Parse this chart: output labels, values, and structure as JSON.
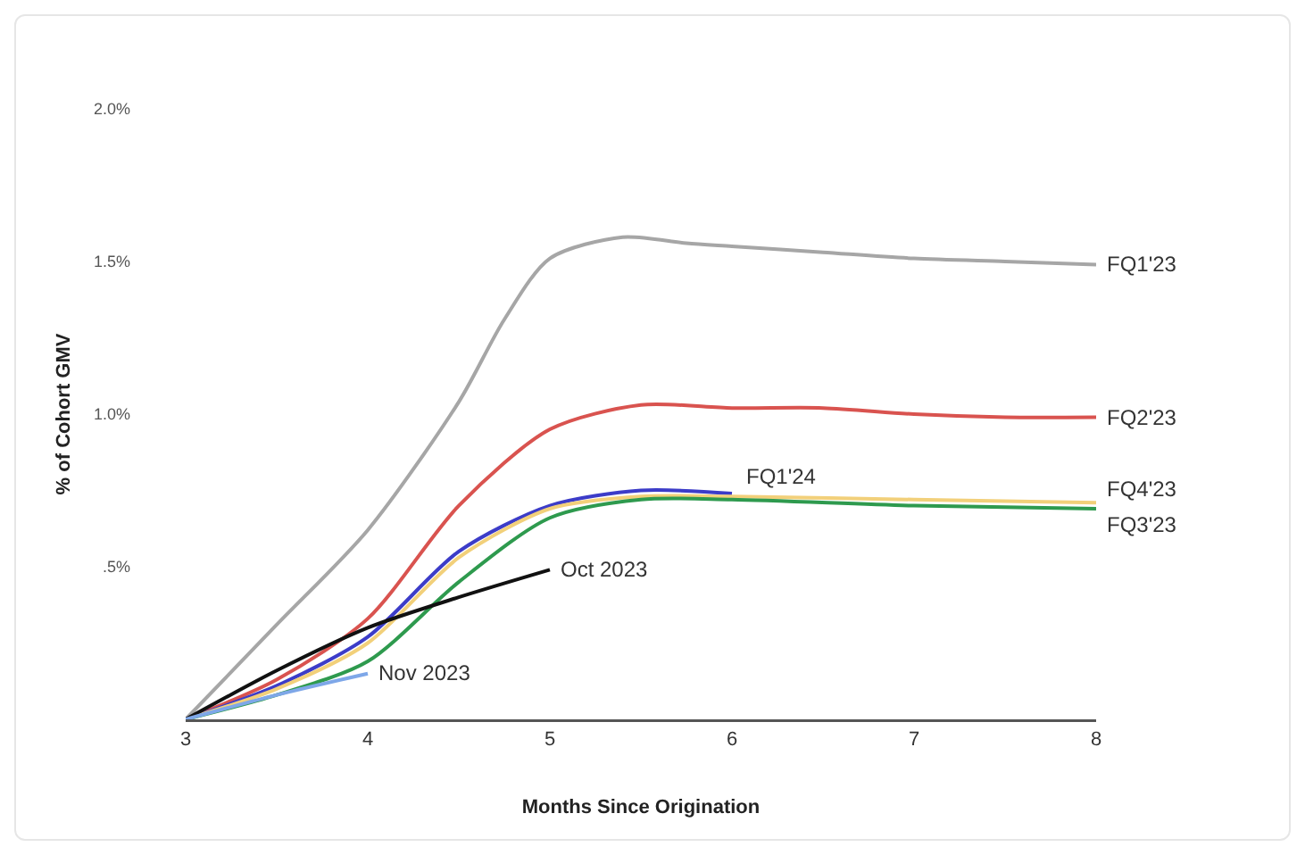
{
  "chart_data": {
    "type": "line",
    "xlabel": "Months Since Origination",
    "ylabel": "% of Cohort GMV",
    "xlim": [
      3,
      8
    ],
    "xticks": [
      3,
      4,
      5,
      6,
      7,
      8
    ],
    "ylim": [
      0,
      2
    ],
    "yticks": [
      {
        "value": 0.5,
        "label": ".5%"
      },
      {
        "value": 1,
        "label": "1.0%"
      },
      {
        "value": 1.5,
        "label": "1.5%"
      },
      {
        "value": 2,
        "label": "2.0%"
      }
    ],
    "grid": false,
    "legend": false,
    "marker": "none",
    "line_style": "solid",
    "series": [
      {
        "name": "FQ1'23",
        "color": "#a6a6a6",
        "x": [
          3,
          3.5,
          4,
          4.5,
          4.75,
          5,
          5.4,
          5.75,
          6,
          6.5,
          7,
          7.5,
          8
        ],
        "values": [
          0,
          0.31,
          0.62,
          1.04,
          1.31,
          1.51,
          1.58,
          1.56,
          1.55,
          1.53,
          1.51,
          1.5,
          1.49
        ]
      },
      {
        "name": "FQ2'23",
        "color": "#d9534f",
        "x": [
          3,
          3.5,
          4,
          4.5,
          5,
          5.5,
          6,
          6.5,
          7,
          7.5,
          8
        ],
        "values": [
          0,
          0.13,
          0.33,
          0.7,
          0.95,
          1.03,
          1.02,
          1.02,
          1.0,
          0.99,
          0.99
        ]
      },
      {
        "name": "FQ1'24",
        "color": "#3c3cc8",
        "x": [
          3,
          3.5,
          4,
          4.5,
          5,
          5.5,
          6
        ],
        "values": [
          0,
          0.11,
          0.27,
          0.55,
          0.7,
          0.75,
          0.74
        ]
      },
      {
        "name": "FQ4'23",
        "color": "#f2d07a",
        "x": [
          3,
          3.5,
          4,
          4.5,
          5,
          5.5,
          6,
          7,
          8
        ],
        "values": [
          0,
          0.1,
          0.25,
          0.53,
          0.69,
          0.73,
          0.73,
          0.72,
          0.71
        ]
      },
      {
        "name": "FQ3'23",
        "color": "#2e9a4e",
        "x": [
          3,
          3.5,
          4,
          4.5,
          5,
          5.5,
          6,
          7,
          8
        ],
        "values": [
          0,
          0.08,
          0.19,
          0.45,
          0.66,
          0.72,
          0.72,
          0.7,
          0.69
        ]
      },
      {
        "name": "Oct 2023",
        "color": "#111111",
        "x": [
          3,
          3.5,
          4,
          4.5,
          5
        ],
        "values": [
          0,
          0.16,
          0.3,
          0.4,
          0.49
        ]
      },
      {
        "name": "Nov 2023",
        "color": "#7ea7e8",
        "x": [
          3,
          3.5,
          4
        ],
        "values": [
          0,
          0.08,
          0.15
        ]
      }
    ]
  }
}
